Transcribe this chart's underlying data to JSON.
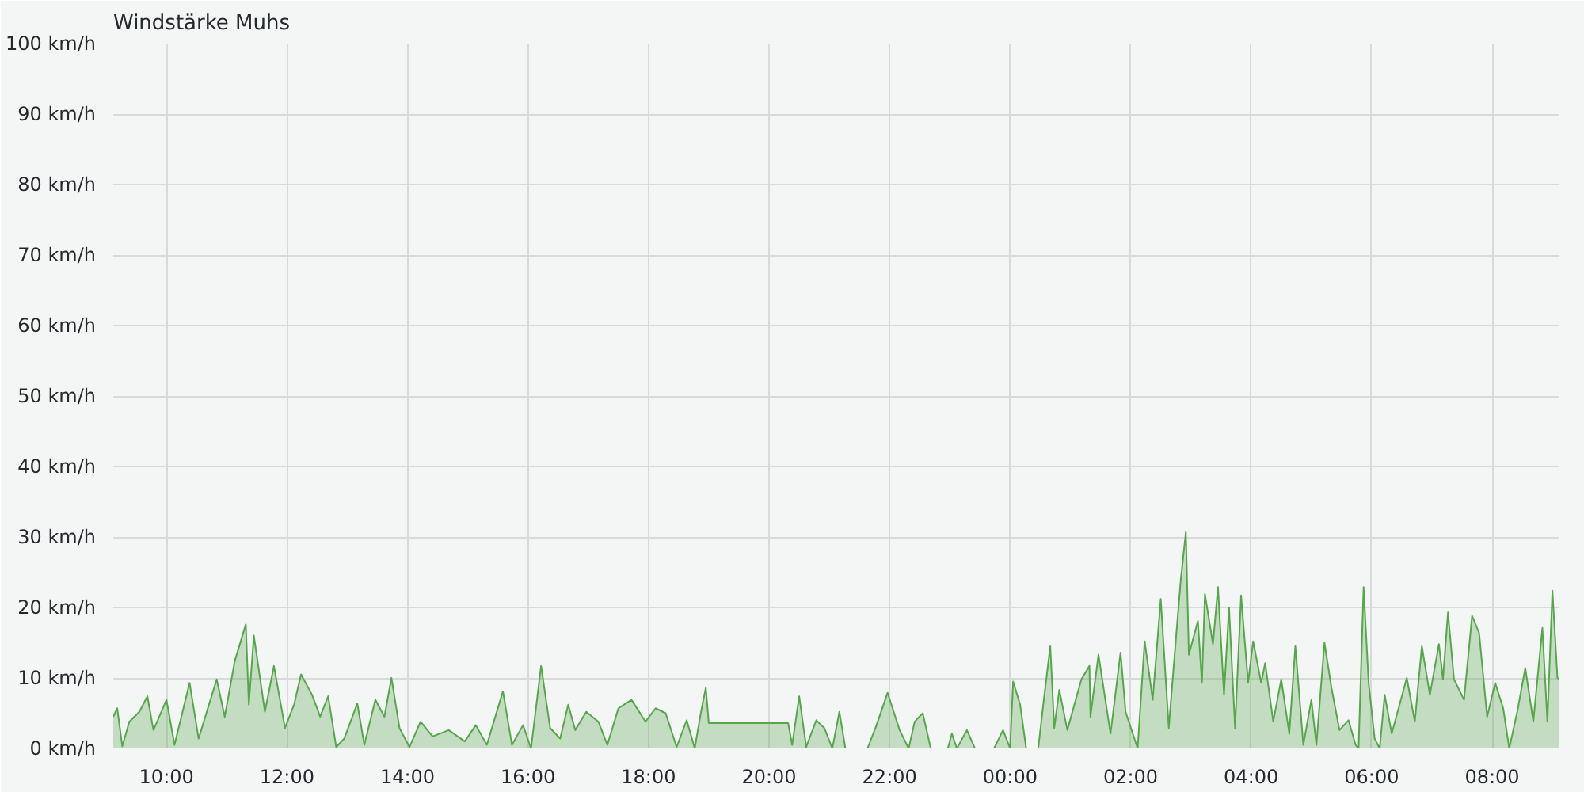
{
  "chart_data": {
    "type": "area",
    "title": "Windstärke Muhs",
    "x": [
      "2000-01-01T09:07",
      "2000-01-01T09:11",
      "2000-01-01T09:16",
      "2000-01-01T09:23",
      "2000-01-01T09:33",
      "2000-01-01T09:41",
      "2000-01-01T09:47",
      "2000-01-01T10:00",
      "2000-01-01T10:08",
      "2000-01-01T10:23",
      "2000-01-01T10:32",
      "2000-01-01T10:50",
      "2000-01-01T10:58",
      "2000-01-01T11:08",
      "2000-01-01T11:19",
      "2000-01-01T11:22",
      "2000-01-01T11:27",
      "2000-01-01T11:38",
      "2000-01-01T11:47",
      "2000-01-01T11:58",
      "2000-01-01T12:07",
      "2000-01-01T12:14",
      "2000-01-01T12:25",
      "2000-01-01T12:33",
      "2000-01-01T12:41",
      "2000-01-01T12:49",
      "2000-01-01T12:57",
      "2000-01-01T13:10",
      "2000-01-01T13:17",
      "2000-01-01T13:28",
      "2000-01-01T13:37",
      "2000-01-01T13:44",
      "2000-01-01T13:52",
      "2000-01-01T14:02",
      "2000-01-01T14:13",
      "2000-01-01T14:25",
      "2000-01-01T14:41",
      "2000-01-01T14:57",
      "2000-01-01T15:08",
      "2000-01-01T15:19",
      "2000-01-01T15:35",
      "2000-01-01T15:44",
      "2000-01-01T15:55",
      "2000-01-01T16:03",
      "2000-01-01T16:13",
      "2000-01-01T16:22",
      "2000-01-01T16:32",
      "2000-01-01T16:40",
      "2000-01-01T16:47",
      "2000-01-01T16:58",
      "2000-01-01T17:10",
      "2000-01-01T17:19",
      "2000-01-01T17:30",
      "2000-01-01T17:43",
      "2000-01-01T17:57",
      "2000-01-01T18:07",
      "2000-01-01T18:17",
      "2000-01-01T18:28",
      "2000-01-01T18:38",
      "2000-01-01T18:46",
      "2000-01-01T18:52",
      "2000-01-01T18:57",
      "2000-01-01T19:00",
      "2000-01-01T20:19",
      "2000-01-01T20:23",
      "2000-01-01T20:30",
      "2000-01-01T20:37",
      "2000-01-01T20:47",
      "2000-01-01T20:55",
      "2000-01-01T21:03",
      "2000-01-01T21:10",
      "2000-01-01T21:16",
      "2000-01-01T21:38",
      "2000-01-01T21:47",
      "2000-01-01T21:58",
      "2000-01-01T22:10",
      "2000-01-01T22:19",
      "2000-01-01T22:25",
      "2000-01-01T22:33",
      "2000-01-01T22:41",
      "2000-01-01T22:58",
      "2000-01-01T23:02",
      "2000-01-01T23:07",
      "2000-01-01T23:17",
      "2000-01-01T23:25",
      "2000-01-01T23:44",
      "2000-01-01T23:53",
      "2000-01-02T00:00",
      "2000-01-02T00:03",
      "2000-01-02T00:10",
      "2000-01-02T00:16",
      "2000-01-02T00:28",
      "2000-01-02T00:33",
      "2000-01-02T00:40",
      "2000-01-02T00:44",
      "2000-01-02T00:49",
      "2000-01-02T00:57",
      "2000-01-02T01:11",
      "2000-01-02T01:19",
      "2000-01-02T01:20",
      "2000-01-02T01:28",
      "2000-01-02T01:40",
      "2000-01-02T01:50",
      "2000-01-02T01:55",
      "2000-01-02T02:07",
      "2000-01-02T02:14",
      "2000-01-02T02:22",
      "2000-01-02T02:30",
      "2000-01-02T02:38",
      "2000-01-02T02:46",
      "2000-01-02T02:50",
      "2000-01-02T02:55",
      "2000-01-02T02:58",
      "2000-01-02T03:07",
      "2000-01-02T03:11",
      "2000-01-02T03:14",
      "2000-01-02T03:22",
      "2000-01-02T03:27",
      "2000-01-02T03:33",
      "2000-01-02T03:38",
      "2000-01-02T03:44",
      "2000-01-02T03:50",
      "2000-01-02T03:57",
      "2000-01-02T04:02",
      "2000-01-02T04:10",
      "2000-01-02T04:14",
      "2000-01-02T04:22",
      "2000-01-02T04:30",
      "2000-01-02T04:38",
      "2000-01-02T04:44",
      "2000-01-02T04:52",
      "2000-01-02T05:00",
      "2000-01-02T05:05",
      "2000-01-02T05:13",
      "2000-01-02T05:20",
      "2000-01-02T05:28",
      "2000-01-02T05:37",
      "2000-01-02T05:44",
      "2000-01-02T05:47",
      "2000-01-02T05:52",
      "2000-01-02T05:57",
      "2000-01-02T06:03",
      "2000-01-02T06:08",
      "2000-01-02T06:13",
      "2000-01-02T06:20",
      "2000-01-02T06:35",
      "2000-01-02T06:43",
      "2000-01-02T06:50",
      "2000-01-02T06:58",
      "2000-01-02T07:07",
      "2000-01-02T07:11",
      "2000-01-02T07:16",
      "2000-01-02T07:22",
      "2000-01-02T07:32",
      "2000-01-02T07:40",
      "2000-01-02T07:47",
      "2000-01-02T07:55",
      "2000-01-02T08:03",
      "2000-01-02T08:11",
      "2000-01-02T08:17",
      "2000-01-02T08:25",
      "2000-01-02T08:33",
      "2000-01-02T08:41",
      "2000-01-02T08:50",
      "2000-01-02T08:55",
      "2000-01-02T09:00",
      "2000-01-02T09:05",
      "2000-01-02T09:07"
    ],
    "series": [
      {
        "color": "#56a64b",
        "values": [
          4.5,
          5.7,
          0.3,
          3.8,
          5.2,
          7.4,
          2.6,
          6.9,
          0.5,
          9.3,
          1.4,
          9.8,
          4.5,
          12.4,
          17.6,
          6.2,
          16,
          5.2,
          11.7,
          2.9,
          6.2,
          10.5,
          7.6,
          4.5,
          7.4,
          0.2,
          1.4,
          6.4,
          0.5,
          6.9,
          4.5,
          10,
          2.9,
          0.2,
          3.8,
          1.7,
          2.6,
          1,
          3.3,
          0.5,
          8.1,
          0.5,
          3.3,
          0,
          11.7,
          2.9,
          1.4,
          6.2,
          2.6,
          5.2,
          3.8,
          0.5,
          5.7,
          6.9,
          3.8,
          5.7,
          5,
          0.2,
          4,
          0,
          5,
          8.6,
          3.6,
          3.6,
          0.5,
          7.4,
          0.2,
          4,
          2.9,
          0,
          5.2,
          0,
          0,
          3.3,
          7.9,
          2.6,
          0,
          3.8,
          5,
          0,
          0,
          2.1,
          0,
          2.6,
          0,
          0,
          2.6,
          0,
          9.5,
          6.2,
          0,
          0,
          6.2,
          14.5,
          2.9,
          8.3,
          2.6,
          9.8,
          11.7,
          4.5,
          13.3,
          2.1,
          13.6,
          5.2,
          0,
          15.2,
          6.9,
          21.2,
          2.9,
          17.1,
          24,
          30.7,
          13.3,
          18.1,
          9.3,
          21.9,
          14.8,
          22.9,
          7.6,
          20,
          2.9,
          21.7,
          9.3,
          15.2,
          9.3,
          12.1,
          3.8,
          9.8,
          2.1,
          14.5,
          0.5,
          6.9,
          0.5,
          15,
          8.6,
          2.6,
          4,
          0.5,
          0,
          22.9,
          9.3,
          1.4,
          0,
          7.6,
          2.1,
          10,
          3.8,
          14.5,
          7.6,
          14.8,
          9.8,
          19.3,
          9.8,
          6.9,
          18.8,
          16.4,
          4.5,
          9.3,
          5.7,
          0,
          5.2,
          11.4,
          3.8,
          17.1,
          3.8,
          22.4,
          10,
          9.8
        ]
      }
    ],
    "xlim": [
      "2000-01-01T09:07",
      "2000-01-02T09:07"
    ],
    "xticks": [
      {
        "value": "2000-01-01T10:00",
        "label": "10:00"
      },
      {
        "value": "2000-01-01T12:00",
        "label": "12:00"
      },
      {
        "value": "2000-01-01T14:00",
        "label": "14:00"
      },
      {
        "value": "2000-01-01T16:00",
        "label": "16:00"
      },
      {
        "value": "2000-01-01T18:00",
        "label": "18:00"
      },
      {
        "value": "2000-01-01T20:00",
        "label": "20:00"
      },
      {
        "value": "2000-01-01T22:00",
        "label": "22:00"
      },
      {
        "value": "2000-01-02T00:00",
        "label": "00:00"
      },
      {
        "value": "2000-01-02T02:00",
        "label": "02:00"
      },
      {
        "value": "2000-01-02T04:00",
        "label": "04:00"
      },
      {
        "value": "2000-01-02T06:00",
        "label": "06:00"
      },
      {
        "value": "2000-01-02T08:00",
        "label": "08:00"
      }
    ],
    "ylim": [
      0,
      100
    ],
    "yticks": [
      {
        "value": 0,
        "label": "0 km/h"
      },
      {
        "value": 10,
        "label": "10 km/h"
      },
      {
        "value": 20,
        "label": "20 km/h"
      },
      {
        "value": 30,
        "label": "30 km/h"
      },
      {
        "value": 40,
        "label": "40 km/h"
      },
      {
        "value": 50,
        "label": "50 km/h"
      },
      {
        "value": 60,
        "label": "60 km/h"
      },
      {
        "value": 70,
        "label": "70 km/h"
      },
      {
        "value": 80,
        "label": "80 km/h"
      },
      {
        "value": 90,
        "label": "90 km/h"
      },
      {
        "value": 100,
        "label": "100 km/h"
      }
    ],
    "grid": true
  }
}
